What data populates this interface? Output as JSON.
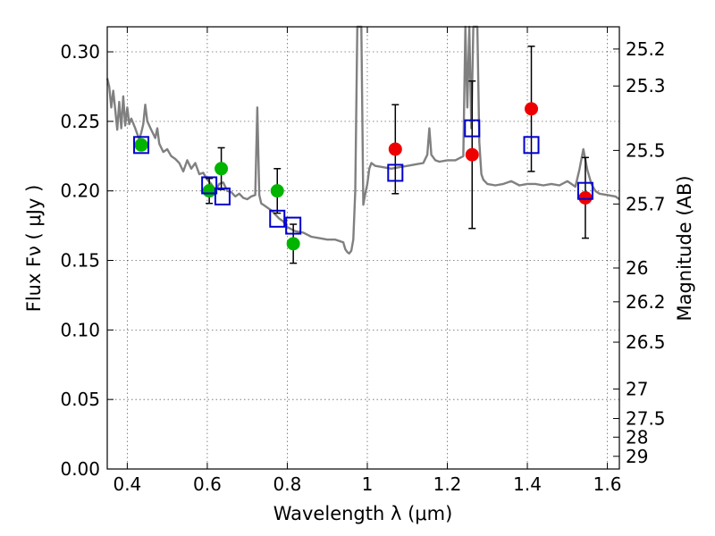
{
  "chart_data": {
    "type": "scatter",
    "xlabel": "Wavelength  λ (μm)",
    "ylabel": "Flux  Fν  ( μJy )",
    "y2label": "Magnitude (AB)",
    "xlim": [
      0.35,
      1.63
    ],
    "ylim": [
      0.0,
      0.318
    ],
    "grid": true,
    "x_ticks": [
      "0.4",
      "0.6",
      "0.8",
      "1",
      "1.2",
      "1.4",
      "1.6"
    ],
    "y_ticks": [
      "0.00",
      "0.05",
      "0.10",
      "0.15",
      "0.20",
      "0.25",
      "0.30"
    ],
    "mag_ticks": [
      "25.2",
      "25.3",
      "25.5",
      "25.7",
      "26",
      "26.2",
      "26.5",
      "27",
      "27.5",
      "28",
      "29"
    ],
    "colors": {
      "model": "#808080",
      "model_phot": "#0000cc",
      "green": "#00b400",
      "red": "#ee0000",
      "errorbar": "#000000"
    },
    "model_spectrum": {
      "x": [
        0.35,
        0.355,
        0.36,
        0.365,
        0.37,
        0.375,
        0.38,
        0.385,
        0.39,
        0.395,
        0.4,
        0.405,
        0.41,
        0.42,
        0.43,
        0.435,
        0.44,
        0.445,
        0.45,
        0.46,
        0.47,
        0.475,
        0.48,
        0.49,
        0.5,
        0.51,
        0.52,
        0.53,
        0.54,
        0.55,
        0.56,
        0.57,
        0.58,
        0.59,
        0.6,
        0.61,
        0.62,
        0.63,
        0.64,
        0.65,
        0.66,
        0.67,
        0.68,
        0.69,
        0.7,
        0.71,
        0.72,
        0.725,
        0.73,
        0.735,
        0.74,
        0.75,
        0.76,
        0.77,
        0.78,
        0.79,
        0.8,
        0.82,
        0.84,
        0.86,
        0.88,
        0.9,
        0.92,
        0.94,
        0.945,
        0.95,
        0.955,
        0.96,
        0.965,
        0.97,
        0.975,
        0.98,
        0.985,
        0.99,
        0.995,
        1.0,
        1.005,
        1.01,
        1.02,
        1.04,
        1.06,
        1.08,
        1.1,
        1.12,
        1.14,
        1.15,
        1.155,
        1.16,
        1.17,
        1.18,
        1.2,
        1.22,
        1.24,
        1.245,
        1.25,
        1.255,
        1.26,
        1.265,
        1.27,
        1.275,
        1.28,
        1.285,
        1.29,
        1.3,
        1.32,
        1.34,
        1.36,
        1.38,
        1.4,
        1.42,
        1.44,
        1.46,
        1.48,
        1.5,
        1.52,
        1.53,
        1.54,
        1.55,
        1.56,
        1.57,
        1.58,
        1.6,
        1.62,
        1.63
      ],
      "y": [
        0.281,
        0.275,
        0.26,
        0.272,
        0.258,
        0.244,
        0.264,
        0.245,
        0.268,
        0.247,
        0.26,
        0.248,
        0.252,
        0.245,
        0.237,
        0.242,
        0.248,
        0.262,
        0.25,
        0.244,
        0.238,
        0.245,
        0.234,
        0.228,
        0.23,
        0.225,
        0.223,
        0.22,
        0.214,
        0.222,
        0.216,
        0.22,
        0.212,
        0.213,
        0.208,
        0.205,
        0.2,
        0.205,
        0.206,
        0.2,
        0.199,
        0.196,
        0.198,
        0.195,
        0.194,
        0.196,
        0.197,
        0.26,
        0.197,
        0.191,
        0.19,
        0.188,
        0.186,
        0.183,
        0.18,
        0.178,
        0.174,
        0.171,
        0.17,
        0.167,
        0.166,
        0.165,
        0.165,
        0.163,
        0.158,
        0.156,
        0.155,
        0.157,
        0.165,
        0.2,
        0.32,
        0.32,
        0.32,
        0.19,
        0.198,
        0.205,
        0.216,
        0.22,
        0.218,
        0.217,
        0.216,
        0.217,
        0.218,
        0.219,
        0.22,
        0.226,
        0.245,
        0.226,
        0.222,
        0.221,
        0.222,
        0.222,
        0.225,
        0.32,
        0.26,
        0.32,
        0.245,
        0.32,
        0.32,
        0.32,
        0.235,
        0.212,
        0.208,
        0.205,
        0.204,
        0.205,
        0.207,
        0.204,
        0.205,
        0.205,
        0.204,
        0.205,
        0.204,
        0.207,
        0.203,
        0.215,
        0.23,
        0.215,
        0.205,
        0.2,
        0.198,
        0.197,
        0.196,
        0.194
      ]
    },
    "model_photometry": {
      "x": [
        0.435,
        0.605,
        0.638,
        0.775,
        0.815,
        1.07,
        1.262,
        1.41,
        1.545
      ],
      "y": [
        0.233,
        0.204,
        0.196,
        0.18,
        0.175,
        0.213,
        0.245,
        0.233,
        0.2
      ]
    },
    "observed_green": {
      "x": [
        0.435,
        0.605,
        0.635,
        0.775,
        0.815
      ],
      "y": [
        0.233,
        0.2,
        0.216,
        0.2,
        0.162
      ],
      "err": [
        0.0,
        0.009,
        0.015,
        0.016,
        0.014
      ]
    },
    "observed_red": {
      "x": [
        1.07,
        1.262,
        1.41,
        1.545
      ],
      "y": [
        0.23,
        0.226,
        0.259,
        0.195
      ],
      "err": [
        0.032,
        0.053,
        0.045,
        0.029
      ]
    }
  }
}
